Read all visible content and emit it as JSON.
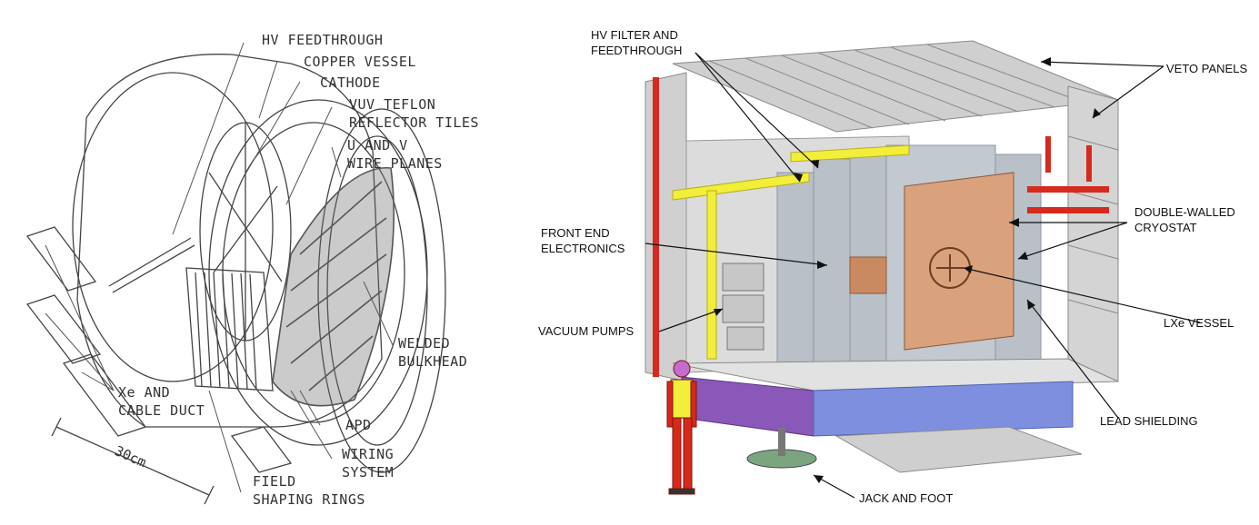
{
  "left_diagram": {
    "labels": {
      "hv_feedthrough": "HV FEEDTHROUGH",
      "copper_vessel": "COPPER VESSEL",
      "cathode": "CATHODE",
      "vuv_teflon_1": "VUV TEFLON",
      "vuv_teflon_2": "REFLECTOR TILES",
      "uv_wire_1": "U AND V",
      "uv_wire_2": "WIRE PLANES",
      "welded_1": "WELDED",
      "welded_2": "BULKHEAD",
      "xe_duct_1": "Xe AND",
      "xe_duct_2": "CABLE DUCT",
      "apd": "APD",
      "wiring_1": "WIRING",
      "wiring_2": "SYSTEM",
      "field_1": "FIELD",
      "field_2": "SHAPING RINGS",
      "scale": "30cm"
    }
  },
  "right_diagram": {
    "labels": {
      "hv_filter_1": "HV FILTER AND",
      "hv_filter_2": "FEEDTHROUGH",
      "veto_panels": "VETO PANELS",
      "front_end_1": "FRONT END",
      "front_end_2": "ELECTRONICS",
      "cryostat_1": "DOUBLE-WALLED",
      "cryostat_2": "CRYOSTAT",
      "lxe_vessel": "LXe VESSEL",
      "vacuum_pumps": "VACUUM PUMPS",
      "lead_shielding": "LEAD SHIELDING",
      "jack_foot": "JACK AND FOOT"
    },
    "colors": {
      "veto_panel_gray": "#c9c9c9",
      "frame_red": "#d62a1e",
      "rail_yellow": "#f2ee3a",
      "copper": "#d9a17c",
      "platform_blue": "#7f8fe0",
      "platform_purple": "#8a58b8",
      "person_red": "#d8281c"
    }
  }
}
